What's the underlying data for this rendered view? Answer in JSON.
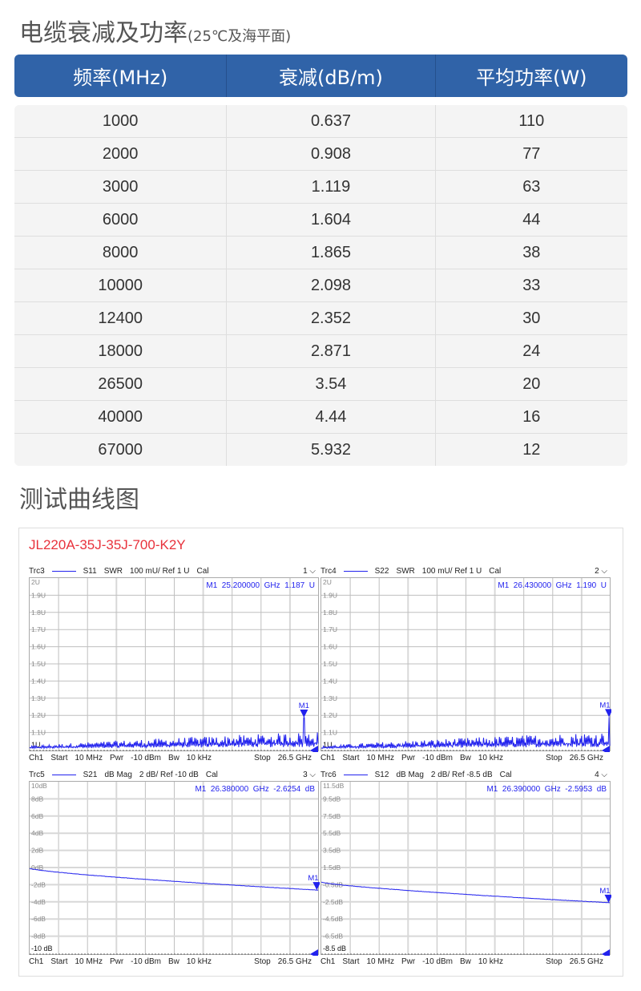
{
  "title": {
    "main": "电缆衰减及功率",
    "sub": "(25℃及海平面)"
  },
  "table": {
    "headers": [
      "频率(MHz)",
      "衰减(dB/m)",
      "平均功率(W)"
    ],
    "rows": [
      [
        "1000",
        "0.637",
        "110"
      ],
      [
        "2000",
        "0.908",
        "77"
      ],
      [
        "3000",
        "1.119",
        "63"
      ],
      [
        "6000",
        "1.604",
        "44"
      ],
      [
        "8000",
        "1.865",
        "38"
      ],
      [
        "10000",
        "2.098",
        "33"
      ],
      [
        "12400",
        "2.352",
        "30"
      ],
      [
        "18000",
        "2.871",
        "24"
      ],
      [
        "26500",
        "3.54",
        "20"
      ],
      [
        "40000",
        "4.44",
        "16"
      ],
      [
        "67000",
        "5.932",
        "12"
      ]
    ],
    "header_color": "#3063a8"
  },
  "section_title": "测试曲线图",
  "model": "JL220A-35J-35J-700-K2Y",
  "trace_color": "#2222ee",
  "chart_data": [
    {
      "type": "line",
      "trace": "Trc3",
      "param": "S11",
      "format": "SWR",
      "scale": "100 mU/ Ref 1 U",
      "cal": "Cal",
      "window": "1",
      "ylim": [
        1,
        2
      ],
      "xlim_ghz": [
        0.01,
        26.5
      ],
      "y_ticks": [
        "2U",
        "1.9U",
        "1.8U",
        "1.7U",
        "1.6U",
        "1.5U",
        "1.4U",
        "1.3U",
        "1.2U",
        "1.1U",
        "1U"
      ],
      "marker": {
        "label": "M1",
        "x_ghz": 25.2,
        "y": 1.187,
        "text": "M1  25.200000  GHz  1.187  U"
      },
      "footer": [
        "Ch1",
        "Start",
        "10 MHz",
        "Pwr",
        "-10 dBm",
        "Bw",
        "10 kHz",
        "Stop",
        "26.5 GHz"
      ]
    },
    {
      "type": "line",
      "trace": "Trc4",
      "param": "S22",
      "format": "SWR",
      "scale": "100 mU/ Ref 1 U",
      "cal": "Cal",
      "window": "2",
      "ylim": [
        1,
        2
      ],
      "xlim_ghz": [
        0.01,
        26.5
      ],
      "y_ticks": [
        "2U",
        "1.9U",
        "1.8U",
        "1.7U",
        "1.6U",
        "1.5U",
        "1.4U",
        "1.3U",
        "1.2U",
        "1.1U",
        "1U"
      ],
      "marker": {
        "label": "M1",
        "x_ghz": 26.43,
        "y": 1.19,
        "text": "M1  26.430000  GHz  1.190  U"
      },
      "footer": [
        "Ch1",
        "Start",
        "10 MHz",
        "Pwr",
        "-10 dBm",
        "Bw",
        "10 kHz",
        "Stop",
        "26.5 GHz"
      ]
    },
    {
      "type": "line",
      "trace": "Trc5",
      "param": "S21",
      "format": "dB Mag",
      "scale": "2 dB/ Ref -10 dB",
      "cal": "Cal",
      "window": "3",
      "ylim": [
        -10,
        10
      ],
      "xlim_ghz": [
        0.01,
        26.5
      ],
      "y_ticks": [
        "10dB",
        "8dB",
        "6dB",
        "4dB",
        "2dB",
        "0dB",
        "-2dB",
        "-4dB",
        "-6dB",
        "-8dB",
        "-10 dB"
      ],
      "start_y": -0.1,
      "marker": {
        "label": "M1",
        "x_ghz": 26.38,
        "y": -2.6254,
        "text": "M1  26.380000  GHz  -2.6254  dB"
      },
      "footer": [
        "Ch1",
        "Start",
        "10 MHz",
        "Pwr",
        "-10 dBm",
        "Bw",
        "10 kHz",
        "Stop",
        "26.5 GHz"
      ]
    },
    {
      "type": "line",
      "trace": "Trc6",
      "param": "S12",
      "format": "dB Mag",
      "scale": "2 dB/ Ref -8.5 dB",
      "cal": "Cal",
      "window": "4",
      "ylim": [
        -8.5,
        11.5
      ],
      "xlim_ghz": [
        0.01,
        26.5
      ],
      "y_ticks": [
        "11.5dB",
        "9.5dB",
        "7.5dB",
        "5.5dB",
        "3.5dB",
        "1.5dB",
        "-0.5dB",
        "-2.5dB",
        "-4.5dB",
        "-6.5dB",
        "-8.5 dB"
      ],
      "start_y": -0.2,
      "marker": {
        "label": "M1",
        "x_ghz": 26.39,
        "y": -2.5953,
        "text": "M1  26.390000  GHz  -2.5953  dB"
      },
      "footer": [
        "Ch1",
        "Start",
        "10 MHz",
        "Pwr",
        "-10 dBm",
        "Bw",
        "10 kHz",
        "Stop",
        "26.5 GHz"
      ]
    }
  ]
}
